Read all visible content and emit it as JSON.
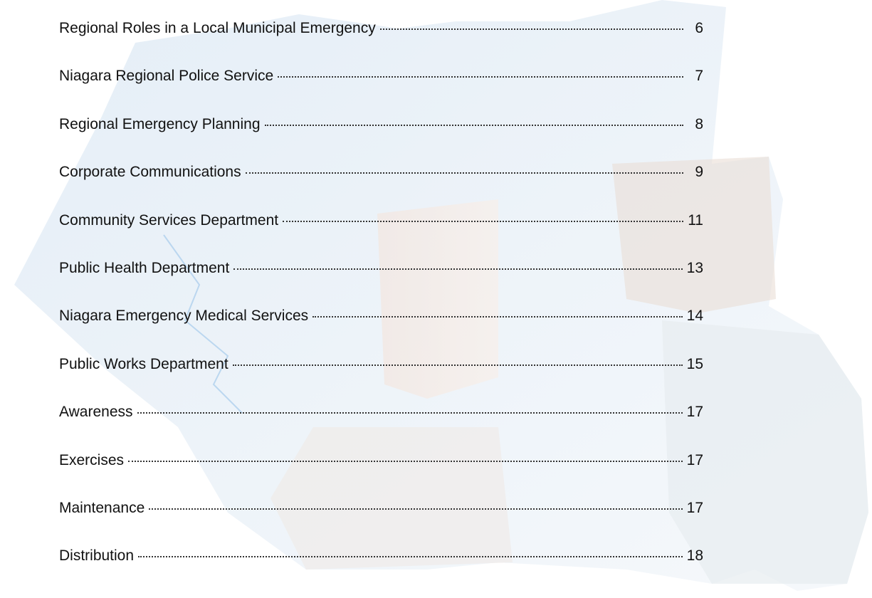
{
  "toc": {
    "entries": [
      {
        "title": "Regional Roles in a Local Municipal Emergency",
        "page": 6
      },
      {
        "title": "Niagara Regional Police Service",
        "page": 7
      },
      {
        "title": "Regional Emergency Planning",
        "page": 8
      },
      {
        "title": "Corporate Communications",
        "page": 9
      },
      {
        "title": "Community Services Department",
        "page": 11
      },
      {
        "title": "Public Health Department",
        "page": 13
      },
      {
        "title": "Niagara Emergency Medical Services",
        "page": 14
      },
      {
        "title": "Public Works Department",
        "page": 15
      },
      {
        "title": "Awareness",
        "page": 17
      },
      {
        "title": "Exercises",
        "page": 17
      },
      {
        "title": "Maintenance",
        "page": 17
      },
      {
        "title": "Distribution",
        "page": 18
      }
    ]
  }
}
